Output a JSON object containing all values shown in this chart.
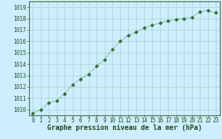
{
  "x": [
    0,
    1,
    2,
    3,
    4,
    5,
    6,
    7,
    8,
    9,
    10,
    11,
    12,
    13,
    14,
    15,
    16,
    17,
    18,
    19,
    20,
    21,
    22,
    23
  ],
  "y": [
    1009.7,
    1010.0,
    1010.6,
    1010.8,
    1011.4,
    1012.2,
    1012.7,
    1013.1,
    1013.8,
    1014.4,
    1015.3,
    1016.0,
    1016.5,
    1016.8,
    1017.2,
    1017.4,
    1017.6,
    1017.8,
    1017.9,
    1018.0,
    1018.1,
    1018.6,
    1018.7,
    1018.5
  ],
  "ylim": [
    1009.5,
    1019.5
  ],
  "xlim": [
    -0.5,
    23.5
  ],
  "yticks": [
    1010,
    1011,
    1012,
    1013,
    1014,
    1015,
    1016,
    1017,
    1018,
    1019
  ],
  "xticks": [
    0,
    1,
    2,
    3,
    4,
    5,
    6,
    7,
    8,
    9,
    10,
    11,
    12,
    13,
    14,
    15,
    16,
    17,
    18,
    19,
    20,
    21,
    22,
    23
  ],
  "xlabel": "Graphe pression niveau de la mer (hPa)",
  "line_color": "#2d6e2d",
  "marker": "D",
  "marker_size": 2.5,
  "line_width": 0.8,
  "bg_color": "#cceeff",
  "grid_color": "#aaccbb",
  "xlabel_color": "#1a4d1a",
  "xlabel_fontsize": 7,
  "tick_fontsize": 5.5,
  "tick_color": "#1a4d1a",
  "fig_bg_color": "#cceeff",
  "spine_color": "#336633"
}
